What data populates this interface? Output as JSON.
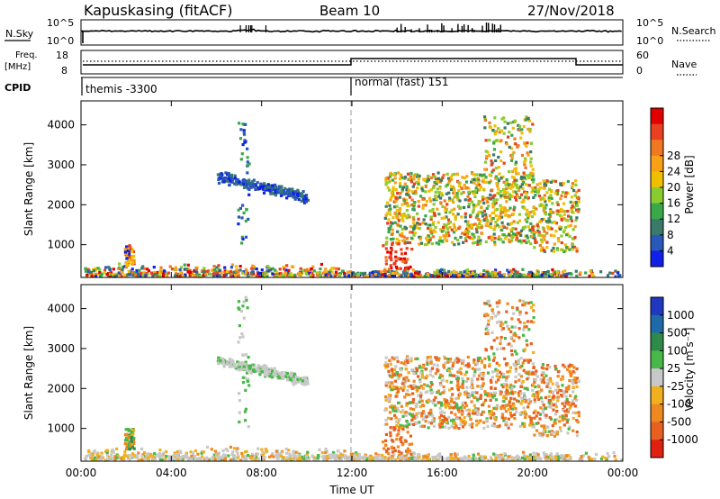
{
  "header": {
    "site": "Kapuskasing (fitACF)",
    "beam": "Beam 10",
    "date": "27/Nov/2018"
  },
  "status": {
    "nsky_label": "N.Sky",
    "nsky_ticks": [
      "10^5",
      "10^0"
    ],
    "nsearch_label": "N.Search",
    "nsearch_ticks": [
      "10^5",
      "10^0"
    ],
    "freq_label": "Freq.",
    "freq_unit": "[MHz]",
    "freq_ticks": [
      "18",
      "8"
    ],
    "nave_label": "Nave",
    "nave_ticks": [
      "60",
      "0"
    ],
    "cpid_label": "CPID",
    "cpid_modes": [
      {
        "name": "themis -3300",
        "start": 0,
        "end": 12
      },
      {
        "name": "normal (fast) 151",
        "start": 12,
        "end": 24
      }
    ]
  },
  "chart_data": [
    {
      "type": "heatmap",
      "name": "power-panel",
      "xlabel": "",
      "ylabel": "Slant Range [km]",
      "xlim": [
        0,
        24
      ],
      "ylim": [
        180,
        4600
      ],
      "yticks": [
        1000,
        2000,
        3000,
        4000
      ],
      "colorbar": {
        "label": "Power [dB]",
        "ticks": [
          "4",
          "8",
          "12",
          "16",
          "20",
          "24",
          "28"
        ],
        "colors": [
          "#1020e8",
          "#2858b8",
          "#3a7a6a",
          "#38a848",
          "#88cc30",
          "#f0c000",
          "#f8a018",
          "#f07820",
          "#e84020",
          "#e00000"
        ]
      }
    },
    {
      "type": "heatmap",
      "name": "velocity-panel",
      "xlabel": "Time UT",
      "ylabel": "Slant Range [km]",
      "xlim": [
        0,
        24
      ],
      "ylim": [
        180,
        4600
      ],
      "yticks": [
        1000,
        2000,
        3000,
        4000
      ],
      "xticks": [
        "00:00",
        "04:00",
        "08:00",
        "12:00",
        "16:00",
        "20:00",
        "00:00"
      ],
      "colorbar": {
        "label": "Velocity [m s⁻¹]",
        "ticks": [
          "1000",
          "500",
          "100",
          "25",
          "-25",
          "-100",
          "-500",
          "-1000"
        ],
        "colors": [
          "#2038c0",
          "#1f6aa8",
          "#2e8a4a",
          "#48b848",
          "#c8c8c8",
          "#f0b020",
          "#f08820",
          "#e86020",
          "#e02010"
        ]
      }
    }
  ],
  "colors": {
    "divider": "#999999"
  }
}
